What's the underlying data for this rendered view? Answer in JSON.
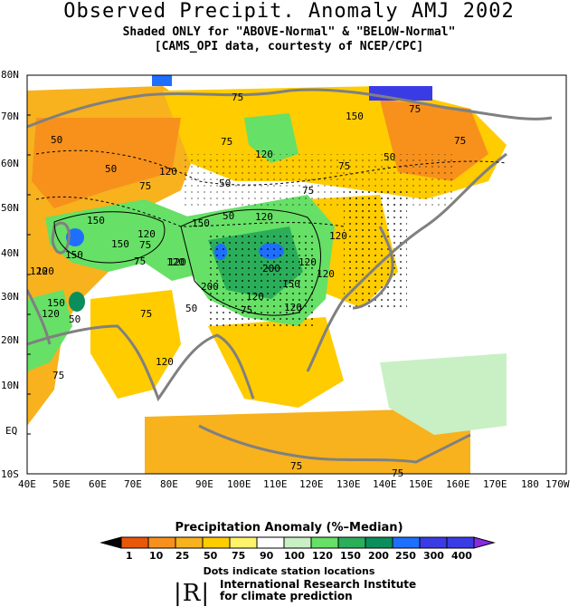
{
  "header": {
    "title": "Observed Precipit. Anomaly AMJ 2002",
    "subtitle1": "Shaded ONLY for \"ABOVE-Normal\" & \"BELOW-Normal\"",
    "subtitle2": "[CAMS_OPI data, courtesty of NCEP/CPC]"
  },
  "axes": {
    "lat_labels": [
      "80N",
      "70N",
      "60N",
      "50N",
      "40N",
      "30N",
      "20N",
      "10N",
      "EQ",
      "10S"
    ],
    "lon_labels": [
      "40E",
      "50E",
      "60E",
      "70E",
      "80E",
      "90E",
      "100E",
      "110E",
      "120E",
      "130E",
      "140E",
      "150E",
      "160E",
      "170E",
      "180",
      "170W"
    ]
  },
  "contour_labels": [
    "50",
    "50",
    "75",
    "75",
    "75",
    "120",
    "150",
    "75",
    "50",
    "75",
    "50",
    "75",
    "120",
    "75",
    "50",
    "120",
    "120",
    "120",
    "150",
    "150",
    "75",
    "120",
    "75",
    "120",
    "120",
    "200",
    "150",
    "120",
    "120",
    "200",
    "150",
    "120",
    "50",
    "75",
    "50",
    "75",
    "120",
    "150",
    "120",
    "120",
    "120",
    "75",
    "150",
    "75",
    "75"
  ],
  "legend": {
    "title": "Precipitation Anomaly (%–Median)",
    "ticks": [
      "1",
      "10",
      "25",
      "50",
      "75",
      "90",
      "100",
      "120",
      "150",
      "200",
      "250",
      "300",
      "400"
    ],
    "colors": [
      "#000000",
      "#e8570a",
      "#f7911c",
      "#f7b21e",
      "#ffcc00",
      "#fff36a",
      "#ffffff",
      "#c9f0c4",
      "#66e066",
      "#2aae5a",
      "#0a8f5c",
      "#1f6fff",
      "#3b3be6",
      "#8a2be2"
    ],
    "note": "Dots indicate station locations"
  },
  "footer": {
    "logo_text": "|R|",
    "line1": "International Research Institute",
    "line2": "for climate prediction"
  }
}
